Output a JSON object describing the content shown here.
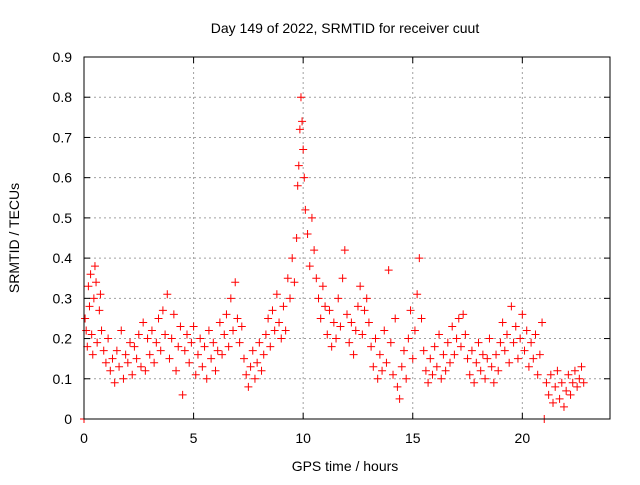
{
  "chart_data": {
    "type": "scatter",
    "title": "Day 149 of 2022, SRMTID for receiver cuut",
    "xlabel": "GPS time / hours",
    "ylabel": "SRMTID / TECUs",
    "xlim": [
      0,
      24
    ],
    "ylim": [
      0,
      0.9
    ],
    "xticks": [
      0,
      5,
      10,
      15,
      20
    ],
    "yticks": [
      0,
      0.1,
      0.2,
      0.3,
      0.4,
      0.5,
      0.6,
      0.7,
      0.8,
      0.9
    ],
    "xtick_labels": [
      "0",
      "5",
      "10",
      "15",
      "20"
    ],
    "ytick_labels": [
      "0",
      "0.1",
      "0.2",
      "0.3",
      "0.4",
      "0.5",
      "0.6",
      "0.7",
      "0.8",
      "0.9"
    ],
    "grid": true,
    "marker": "plus",
    "color": "#ff0000",
    "series": [
      {
        "name": "SRMTID",
        "points": [
          [
            0.0,
            0.0
          ],
          [
            0.05,
            0.25
          ],
          [
            0.1,
            0.22
          ],
          [
            0.15,
            0.18
          ],
          [
            0.2,
            0.33
          ],
          [
            0.25,
            0.28
          ],
          [
            0.3,
            0.36
          ],
          [
            0.35,
            0.21
          ],
          [
            0.4,
            0.16
          ],
          [
            0.45,
            0.3
          ],
          [
            0.5,
            0.38
          ],
          [
            0.55,
            0.34
          ],
          [
            0.6,
            0.19
          ],
          [
            0.7,
            0.27
          ],
          [
            0.75,
            0.31
          ],
          [
            0.8,
            0.22
          ],
          [
            0.9,
            0.17
          ],
          [
            1.0,
            0.14
          ],
          [
            1.1,
            0.2
          ],
          [
            1.2,
            0.12
          ],
          [
            1.3,
            0.15
          ],
          [
            1.4,
            0.09
          ],
          [
            1.5,
            0.17
          ],
          [
            1.6,
            0.13
          ],
          [
            1.7,
            0.22
          ],
          [
            1.8,
            0.1
          ],
          [
            1.9,
            0.16
          ],
          [
            2.0,
            0.14
          ],
          [
            2.1,
            0.19
          ],
          [
            2.2,
            0.11
          ],
          [
            2.3,
            0.18
          ],
          [
            2.4,
            0.15
          ],
          [
            2.5,
            0.21
          ],
          [
            2.6,
            0.13
          ],
          [
            2.7,
            0.24
          ],
          [
            2.8,
            0.12
          ],
          [
            2.9,
            0.2
          ],
          [
            3.0,
            0.16
          ],
          [
            3.1,
            0.22
          ],
          [
            3.2,
            0.14
          ],
          [
            3.3,
            0.19
          ],
          [
            3.4,
            0.25
          ],
          [
            3.5,
            0.17
          ],
          [
            3.6,
            0.27
          ],
          [
            3.7,
            0.21
          ],
          [
            3.8,
            0.31
          ],
          [
            3.9,
            0.15
          ],
          [
            4.0,
            0.2
          ],
          [
            4.1,
            0.26
          ],
          [
            4.2,
            0.12
          ],
          [
            4.3,
            0.18
          ],
          [
            4.4,
            0.23
          ],
          [
            4.5,
            0.06
          ],
          [
            4.6,
            0.17
          ],
          [
            4.7,
            0.21
          ],
          [
            4.8,
            0.14
          ],
          [
            4.9,
            0.19
          ],
          [
            5.0,
            0.23
          ],
          [
            5.1,
            0.11
          ],
          [
            5.2,
            0.16
          ],
          [
            5.3,
            0.2
          ],
          [
            5.4,
            0.13
          ],
          [
            5.5,
            0.18
          ],
          [
            5.6,
            0.1
          ],
          [
            5.7,
            0.22
          ],
          [
            5.8,
            0.15
          ],
          [
            5.9,
            0.19
          ],
          [
            6.0,
            0.12
          ],
          [
            6.1,
            0.17
          ],
          [
            6.2,
            0.24
          ],
          [
            6.3,
            0.16
          ],
          [
            6.4,
            0.21
          ],
          [
            6.5,
            0.26
          ],
          [
            6.6,
            0.18
          ],
          [
            6.7,
            0.3
          ],
          [
            6.8,
            0.22
          ],
          [
            6.9,
            0.34
          ],
          [
            7.0,
            0.25
          ],
          [
            7.1,
            0.19
          ],
          [
            7.2,
            0.23
          ],
          [
            7.3,
            0.15
          ],
          [
            7.4,
            0.11
          ],
          [
            7.5,
            0.08
          ],
          [
            7.6,
            0.13
          ],
          [
            7.7,
            0.17
          ],
          [
            7.8,
            0.1
          ],
          [
            7.9,
            0.14
          ],
          [
            8.0,
            0.19
          ],
          [
            8.1,
            0.12
          ],
          [
            8.2,
            0.16
          ],
          [
            8.3,
            0.21
          ],
          [
            8.4,
            0.25
          ],
          [
            8.5,
            0.18
          ],
          [
            8.6,
            0.27
          ],
          [
            8.7,
            0.22
          ],
          [
            8.8,
            0.31
          ],
          [
            8.9,
            0.24
          ],
          [
            9.0,
            0.2
          ],
          [
            9.1,
            0.28
          ],
          [
            9.2,
            0.22
          ],
          [
            9.3,
            0.35
          ],
          [
            9.4,
            0.3
          ],
          [
            9.5,
            0.4
          ],
          [
            9.6,
            0.34
          ],
          [
            9.7,
            0.45
          ],
          [
            9.75,
            0.58
          ],
          [
            9.8,
            0.63
          ],
          [
            9.85,
            0.72
          ],
          [
            9.9,
            0.8
          ],
          [
            9.95,
            0.74
          ],
          [
            10.0,
            0.67
          ],
          [
            10.05,
            0.6
          ],
          [
            10.1,
            0.52
          ],
          [
            10.2,
            0.46
          ],
          [
            10.3,
            0.38
          ],
          [
            10.4,
            0.5
          ],
          [
            10.5,
            0.42
          ],
          [
            10.6,
            0.35
          ],
          [
            10.7,
            0.3
          ],
          [
            10.8,
            0.25
          ],
          [
            10.9,
            0.33
          ],
          [
            11.0,
            0.28
          ],
          [
            11.1,
            0.21
          ],
          [
            11.2,
            0.27
          ],
          [
            11.3,
            0.18
          ],
          [
            11.4,
            0.24
          ],
          [
            11.5,
            0.2
          ],
          [
            11.6,
            0.3
          ],
          [
            11.7,
            0.23
          ],
          [
            11.8,
            0.35
          ],
          [
            11.9,
            0.42
          ],
          [
            12.0,
            0.26
          ],
          [
            12.1,
            0.19
          ],
          [
            12.2,
            0.24
          ],
          [
            12.3,
            0.16
          ],
          [
            12.4,
            0.22
          ],
          [
            12.5,
            0.28
          ],
          [
            12.6,
            0.33
          ],
          [
            12.7,
            0.21
          ],
          [
            12.8,
            0.27
          ],
          [
            12.9,
            0.3
          ],
          [
            13.0,
            0.24
          ],
          [
            13.1,
            0.18
          ],
          [
            13.2,
            0.13
          ],
          [
            13.3,
            0.2
          ],
          [
            13.4,
            0.1
          ],
          [
            13.5,
            0.16
          ],
          [
            13.6,
            0.12
          ],
          [
            13.7,
            0.22
          ],
          [
            13.8,
            0.14
          ],
          [
            13.9,
            0.37
          ],
          [
            14.0,
            0.19
          ],
          [
            14.1,
            0.11
          ],
          [
            14.2,
            0.25
          ],
          [
            14.3,
            0.08
          ],
          [
            14.4,
            0.05
          ],
          [
            14.5,
            0.13
          ],
          [
            14.6,
            0.17
          ],
          [
            14.7,
            0.1
          ],
          [
            14.8,
            0.2
          ],
          [
            14.9,
            0.27
          ],
          [
            15.0,
            0.15
          ],
          [
            15.1,
            0.22
          ],
          [
            15.2,
            0.31
          ],
          [
            15.3,
            0.4
          ],
          [
            15.4,
            0.25
          ],
          [
            15.5,
            0.17
          ],
          [
            15.6,
            0.12
          ],
          [
            15.7,
            0.09
          ],
          [
            15.8,
            0.15
          ],
          [
            15.9,
            0.11
          ],
          [
            16.0,
            0.18
          ],
          [
            16.1,
            0.13
          ],
          [
            16.2,
            0.21
          ],
          [
            16.3,
            0.1
          ],
          [
            16.4,
            0.16
          ],
          [
            16.5,
            0.12
          ],
          [
            16.6,
            0.19
          ],
          [
            16.7,
            0.14
          ],
          [
            16.8,
            0.23
          ],
          [
            16.9,
            0.16
          ],
          [
            17.0,
            0.2
          ],
          [
            17.1,
            0.25
          ],
          [
            17.2,
            0.18
          ],
          [
            17.3,
            0.26
          ],
          [
            17.4,
            0.21
          ],
          [
            17.5,
            0.15
          ],
          [
            17.6,
            0.11
          ],
          [
            17.7,
            0.17
          ],
          [
            17.8,
            0.09
          ],
          [
            17.9,
            0.14
          ],
          [
            18.0,
            0.19
          ],
          [
            18.1,
            0.12
          ],
          [
            18.2,
            0.16
          ],
          [
            18.3,
            0.1
          ],
          [
            18.4,
            0.15
          ],
          [
            18.5,
            0.2
          ],
          [
            18.6,
            0.13
          ],
          [
            18.7,
            0.09
          ],
          [
            18.8,
            0.16
          ],
          [
            18.9,
            0.12
          ],
          [
            19.0,
            0.19
          ],
          [
            19.1,
            0.24
          ],
          [
            19.2,
            0.17
          ],
          [
            19.3,
            0.21
          ],
          [
            19.4,
            0.14
          ],
          [
            19.5,
            0.28
          ],
          [
            19.6,
            0.19
          ],
          [
            19.7,
            0.23
          ],
          [
            19.8,
            0.15
          ],
          [
            19.9,
            0.2
          ],
          [
            20.0,
            0.26
          ],
          [
            20.1,
            0.17
          ],
          [
            20.2,
            0.22
          ],
          [
            20.3,
            0.13
          ],
          [
            20.4,
            0.19
          ],
          [
            20.5,
            0.15
          ],
          [
            20.6,
            0.21
          ],
          [
            20.7,
            0.11
          ],
          [
            20.8,
            0.16
          ],
          [
            20.9,
            0.24
          ],
          [
            21.0,
            0.0
          ],
          [
            21.1,
            0.09
          ],
          [
            21.2,
            0.06
          ],
          [
            21.3,
            0.11
          ],
          [
            21.4,
            0.04
          ],
          [
            21.5,
            0.08
          ],
          [
            21.6,
            0.12
          ],
          [
            21.7,
            0.05
          ],
          [
            21.8,
            0.09
          ],
          [
            21.9,
            0.03
          ],
          [
            22.0,
            0.07
          ],
          [
            22.1,
            0.11
          ],
          [
            22.2,
            0.06
          ],
          [
            22.3,
            0.09
          ],
          [
            22.4,
            0.12
          ],
          [
            22.5,
            0.08
          ],
          [
            22.6,
            0.1
          ],
          [
            22.7,
            0.13
          ],
          [
            22.8,
            0.09
          ]
        ]
      }
    ]
  }
}
